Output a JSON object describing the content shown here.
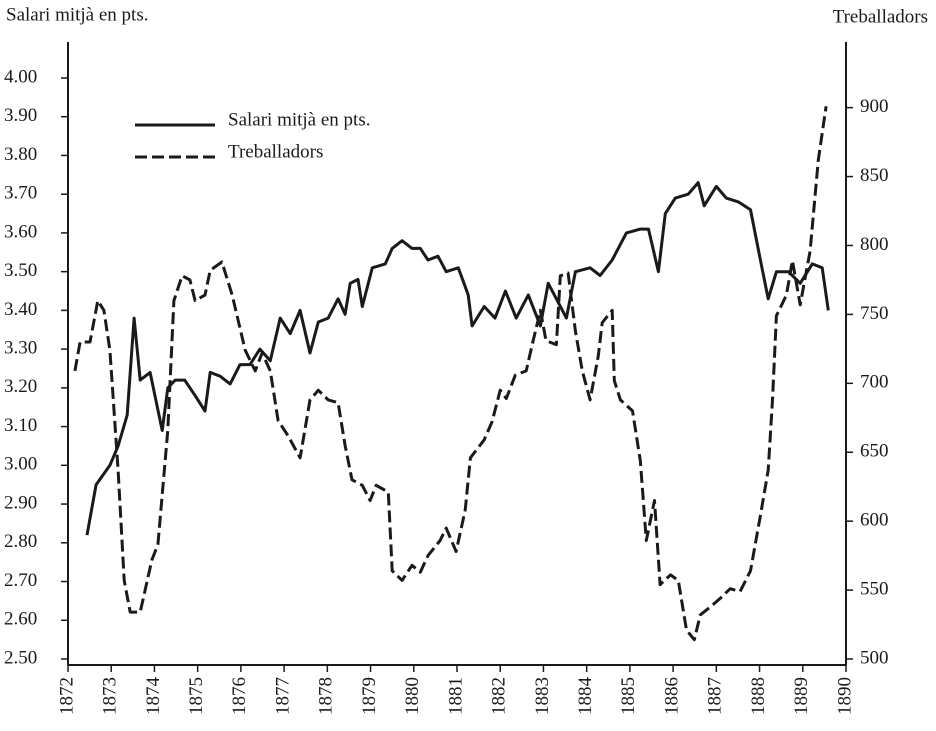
{
  "chart_data": {
    "type": "line",
    "ylabel": "Salari mitjà en pts.",
    "y2label": "Treballadors",
    "xlim": [
      1872,
      1890
    ],
    "xticks": [
      1872,
      1873,
      1874,
      1875,
      1876,
      1877,
      1878,
      1879,
      1880,
      1881,
      1882,
      1883,
      1884,
      1885,
      1886,
      1887,
      1888,
      1889,
      1890
    ],
    "ylim": [
      2.5,
      4.08
    ],
    "yticks": [
      {
        "value": 2.5,
        "label": "2.50"
      },
      {
        "value": 2.6,
        "label": "2.60"
      },
      {
        "value": 2.7,
        "label": "2.70"
      },
      {
        "value": 2.8,
        "label": "2.80"
      },
      {
        "value": 2.9,
        "label": "2.90"
      },
      {
        "value": 3.0,
        "label": "3.00"
      },
      {
        "value": 3.1,
        "label": "3.10"
      },
      {
        "value": 3.2,
        "label": "3.20"
      },
      {
        "value": 3.3,
        "label": "3.30"
      },
      {
        "value": 3.4,
        "label": "3.40"
      },
      {
        "value": 3.5,
        "label": "3.50"
      },
      {
        "value": 3.6,
        "label": "3.60"
      },
      {
        "value": 3.7,
        "label": "3.70"
      },
      {
        "value": 3.8,
        "label": "3.80"
      },
      {
        "value": 3.9,
        "label": "3.90"
      },
      {
        "value": 4.0,
        "label": "4.00"
      }
    ],
    "y2lim": [
      500,
      944
    ],
    "y2ticks": [
      500,
      550,
      600,
      650,
      700,
      750,
      800,
      850,
      900
    ],
    "grid": false,
    "legend": "upper left",
    "series": [
      {
        "name": "Salari mitjà en pts.",
        "color": "#1a1a1a",
        "linestyle": "solid",
        "axis": "y",
        "x": [
          1872.44,
          1872.65,
          1872.97,
          1873.16,
          1873.37,
          1873.53,
          1873.67,
          1873.9,
          1874.18,
          1874.31,
          1874.48,
          1874.7,
          1874.94,
          1875.17,
          1875.29,
          1875.52,
          1875.75,
          1875.98,
          1876.21,
          1876.44,
          1876.68,
          1876.91,
          1877.14,
          1877.37,
          1877.6,
          1877.79,
          1878.02,
          1878.25,
          1878.41,
          1878.53,
          1878.71,
          1878.81,
          1879.04,
          1879.34,
          1879.5,
          1879.73,
          1879.96,
          1880.15,
          1880.33,
          1880.56,
          1880.75,
          1881.03,
          1881.26,
          1881.35,
          1881.63,
          1881.88,
          1882.12,
          1882.37,
          1882.65,
          1882.93,
          1883.11,
          1883.3,
          1883.53,
          1883.74,
          1884.08,
          1884.31,
          1884.59,
          1884.92,
          1885.24,
          1885.43,
          1885.66,
          1885.82,
          1886.05,
          1886.35,
          1886.58,
          1886.72,
          1887.0,
          1887.23,
          1887.51,
          1887.79,
          1888.02,
          1888.2,
          1888.39,
          1888.67,
          1888.94,
          1889.22,
          1889.45,
          1889.59
        ],
        "values": [
          2.82,
          2.95,
          3.0,
          3.05,
          3.13,
          3.38,
          3.22,
          3.24,
          3.09,
          3.2,
          3.22,
          3.22,
          3.18,
          3.14,
          3.24,
          3.23,
          3.21,
          3.26,
          3.26,
          3.3,
          3.27,
          3.38,
          3.34,
          3.4,
          3.29,
          3.37,
          3.38,
          3.43,
          3.39,
          3.47,
          3.48,
          3.41,
          3.51,
          3.52,
          3.56,
          3.58,
          3.56,
          3.56,
          3.53,
          3.54,
          3.5,
          3.51,
          3.44,
          3.36,
          3.41,
          3.38,
          3.45,
          3.38,
          3.44,
          3.36,
          3.47,
          3.43,
          3.38,
          3.5,
          3.51,
          3.49,
          3.53,
          3.6,
          3.61,
          3.61,
          3.5,
          3.65,
          3.69,
          3.7,
          3.73,
          3.67,
          3.72,
          3.69,
          3.68,
          3.66,
          3.53,
          3.43,
          3.5,
          3.5,
          3.47,
          3.52,
          3.51,
          3.4
        ]
      },
      {
        "name": "Treballadors",
        "color": "#1a1a1a",
        "linestyle": "dashed",
        "axis": "y2",
        "x": [
          1872.16,
          1872.28,
          1872.51,
          1872.69,
          1872.83,
          1872.97,
          1873.16,
          1873.3,
          1873.44,
          1873.67,
          1873.94,
          1874.08,
          1874.31,
          1874.45,
          1874.64,
          1874.82,
          1874.94,
          1875.17,
          1875.29,
          1875.56,
          1875.8,
          1876.1,
          1876.33,
          1876.49,
          1876.68,
          1876.86,
          1877.09,
          1877.37,
          1877.6,
          1877.79,
          1878.02,
          1878.25,
          1878.41,
          1878.57,
          1878.81,
          1878.99,
          1879.13,
          1879.41,
          1879.5,
          1879.73,
          1879.96,
          1880.15,
          1880.33,
          1880.61,
          1880.75,
          1880.98,
          1881.19,
          1881.31,
          1881.63,
          1881.81,
          1882.0,
          1882.14,
          1882.35,
          1882.6,
          1882.74,
          1882.93,
          1883.06,
          1883.3,
          1883.39,
          1883.57,
          1883.74,
          1883.9,
          1884.08,
          1884.27,
          1884.36,
          1884.59,
          1884.64,
          1884.78,
          1885.06,
          1885.24,
          1885.38,
          1885.57,
          1885.7,
          1885.94,
          1886.12,
          1886.31,
          1886.49,
          1886.63,
          1886.91,
          1887.09,
          1887.32,
          1887.55,
          1887.79,
          1888.02,
          1888.2,
          1888.3,
          1888.39,
          1888.62,
          1888.76,
          1888.94,
          1889.17,
          1889.36,
          1889.54
        ],
        "values": [
          709,
          730,
          730,
          760,
          753,
          724,
          637,
          557,
          534,
          534,
          572,
          583,
          666,
          760,
          778,
          775,
          760,
          764,
          782,
          788,
          764,
          724,
          709,
          722,
          709,
          673,
          662,
          646,
          688,
          695,
          688,
          686,
          655,
          630,
          626,
          615,
          626,
          621,
          564,
          557,
          568,
          563,
          575,
          586,
          595,
          578,
          608,
          646,
          659,
          672,
          695,
          689,
          706,
          709,
          728,
          753,
          731,
          728,
          778,
          780,
          738,
          709,
          688,
          720,
          744,
          753,
          702,
          688,
          680,
          644,
          586,
          615,
          554,
          561,
          557,
          521,
          514,
          532,
          539,
          544,
          551,
          549,
          564,
          604,
          637,
          688,
          749,
          764,
          789,
          757,
          796,
          862,
          901
        ]
      }
    ]
  }
}
